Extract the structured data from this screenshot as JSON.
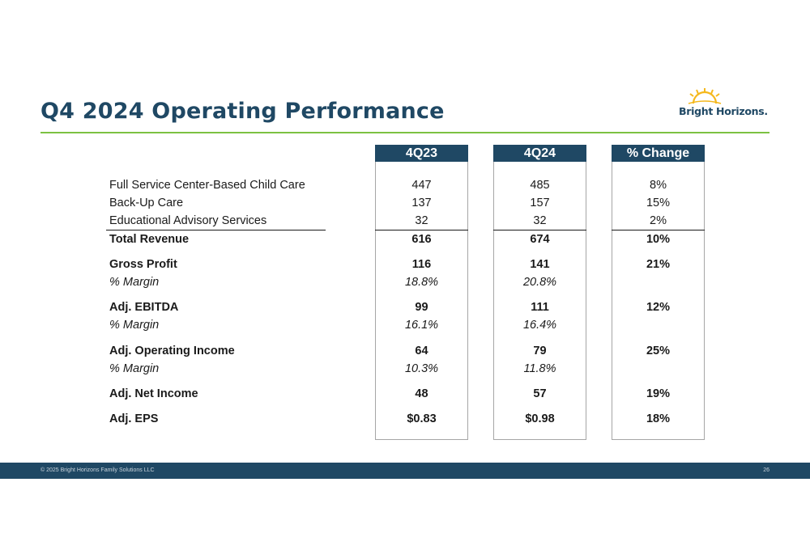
{
  "title": "Q4 2024 Operating Performance",
  "logo": {
    "text": "Bright Horizons.",
    "icon": "sun-rays-icon"
  },
  "columns": [
    "4Q23",
    "4Q24",
    "% Change"
  ],
  "rows": [
    {
      "label": "Full Service Center-Based Child Care",
      "q23": "447",
      "q24": "485",
      "chg": "8%"
    },
    {
      "label": "Back-Up Care",
      "q23": "137",
      "q24": "157",
      "chg": "15%"
    },
    {
      "label": "Educational Advisory Services",
      "q23": "32",
      "q24": "32",
      "chg": "2%"
    },
    {
      "label": "Total Revenue",
      "q23": "616",
      "q24": "674",
      "chg": "10%"
    },
    {
      "label": "Gross Profit",
      "q23": "116",
      "q24": "141",
      "chg": "21%"
    },
    {
      "label": "% Margin",
      "q23": "18.8%",
      "q24": "20.8%",
      "chg": ""
    },
    {
      "label": "Adj. EBITDA",
      "q23": "99",
      "q24": "111",
      "chg": "12%"
    },
    {
      "label": "% Margin",
      "q23": "16.1%",
      "q24": "16.4%",
      "chg": ""
    },
    {
      "label": "Adj. Operating Income",
      "q23": "64",
      "q24": "79",
      "chg": "25%"
    },
    {
      "label": "% Margin",
      "q23": "10.3%",
      "q24": "11.8%",
      "chg": ""
    },
    {
      "label": "Adj. Net Income",
      "q23": "48",
      "q24": "57",
      "chg": "19%"
    },
    {
      "label": "Adj. EPS",
      "q23": "$0.83",
      "q24": "$0.98",
      "chg": "18%"
    }
  ],
  "footer": {
    "copyright": "© 2025 Bright Horizons Family Solutions LLC",
    "page": "26"
  },
  "colors": {
    "navy": "#1f4864",
    "green": "#7cc242",
    "sun": "#f5b81c"
  }
}
